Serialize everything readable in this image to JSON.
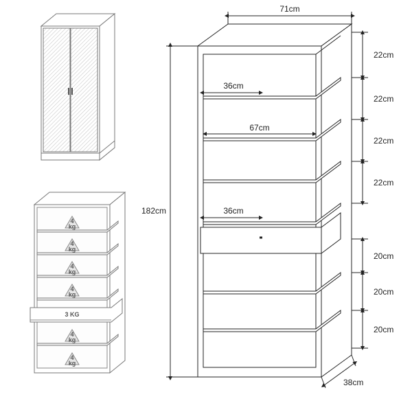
{
  "main_diagram": {
    "type": "technical-drawing",
    "overall_width_label": "71cm",
    "overall_height_label": "182cm",
    "overall_depth_label": "38cm",
    "inner_width_label": "67cm",
    "half_width_labels": [
      "36cm",
      "36cm"
    ],
    "shelf_gap_labels": [
      "22cm",
      "22cm",
      "22cm",
      "22cm",
      "20cm",
      "20cm",
      "20cm"
    ],
    "stroke_color": "#222222",
    "text_color": "#222222",
    "fontsize": 12
  },
  "closed_view": {
    "type": "technical-drawing",
    "stroke_color": "#777777",
    "hatch_color": "#cccccc"
  },
  "load_view": {
    "type": "technical-drawing",
    "shelf_weight_label": "4\nkg",
    "drawer_weight_label": "3 KG",
    "stroke_color": "#777777",
    "text_color": "#555555",
    "fontsize": 9
  }
}
